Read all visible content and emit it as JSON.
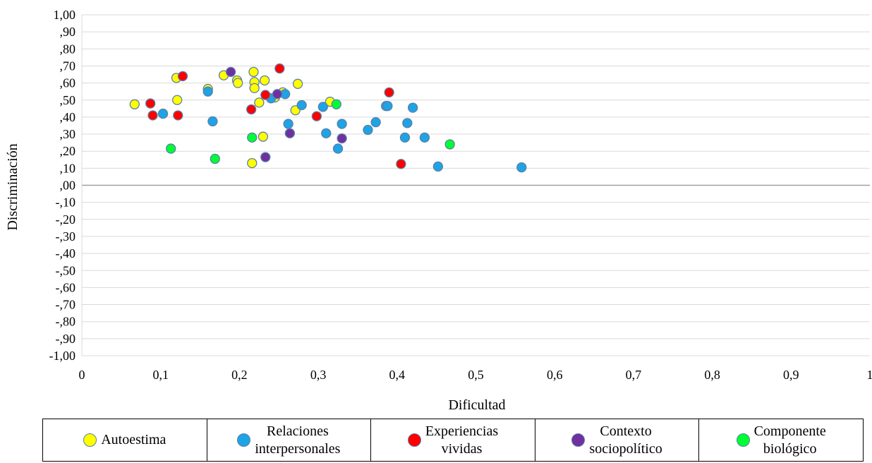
{
  "chart_data": {
    "type": "scatter",
    "title": "",
    "xlabel": "Dificultad",
    "ylabel": "Discriminación",
    "xlim": [
      0,
      1
    ],
    "ylim": [
      -1,
      1
    ],
    "x_ticks": [
      0,
      0.1,
      0.2,
      0.3,
      0.4,
      0.5,
      0.6,
      0.7,
      0.8,
      0.9,
      1
    ],
    "x_tick_labels": [
      "0",
      "0,1",
      "0,2",
      "0,3",
      "0,4",
      "0,5",
      "0,6",
      "0,7",
      "0,8",
      "0,9",
      "1"
    ],
    "y_ticks": [
      1,
      0.9,
      0.8,
      0.7,
      0.6,
      0.5,
      0.4,
      0.3,
      0.2,
      0.1,
      0,
      -0.1,
      -0.2,
      -0.3,
      -0.4,
      -0.5,
      -0.6,
      -0.7,
      -0.8,
      -0.9,
      -1
    ],
    "y_tick_labels": [
      "1,00",
      ",90",
      ",80",
      ",70",
      ",60",
      ",50",
      ",40",
      ",30",
      ",20",
      ",10",
      ",00",
      "-,10",
      "-,20",
      "-,30",
      "-,40",
      "-,50",
      "-,60",
      "-,70",
      "-,80",
      "-,90",
      "-1,00"
    ],
    "grid": true,
    "legend_position": "bottom",
    "series": [
      {
        "name": "Autoestima",
        "color": "#ffff00",
        "points": [
          [
            0.067,
            0.475
          ],
          [
            0.12,
            0.63
          ],
          [
            0.121,
            0.5
          ],
          [
            0.16,
            0.565
          ],
          [
            0.18,
            0.645
          ],
          [
            0.197,
            0.615
          ],
          [
            0.198,
            0.6
          ],
          [
            0.218,
            0.665
          ],
          [
            0.219,
            0.605
          ],
          [
            0.219,
            0.57
          ],
          [
            0.216,
            0.13
          ],
          [
            0.225,
            0.485
          ],
          [
            0.23,
            0.285
          ],
          [
            0.232,
            0.615
          ],
          [
            0.245,
            0.515
          ],
          [
            0.255,
            0.545
          ],
          [
            0.271,
            0.44
          ],
          [
            0.274,
            0.595
          ],
          [
            0.315,
            0.49
          ]
        ]
      },
      {
        "name": "Relaciones\ninterpersonales",
        "color": "#1ea3e6",
        "points": [
          [
            0.103,
            0.42
          ],
          [
            0.16,
            0.55
          ],
          [
            0.166,
            0.375
          ],
          [
            0.24,
            0.51
          ],
          [
            0.258,
            0.535
          ],
          [
            0.262,
            0.36
          ],
          [
            0.279,
            0.47
          ],
          [
            0.306,
            0.46
          ],
          [
            0.31,
            0.305
          ],
          [
            0.325,
            0.215
          ],
          [
            0.33,
            0.36
          ],
          [
            0.363,
            0.325
          ],
          [
            0.373,
            0.37
          ],
          [
            0.386,
            0.465
          ],
          [
            0.388,
            0.465
          ],
          [
            0.41,
            0.28
          ],
          [
            0.413,
            0.365
          ],
          [
            0.42,
            0.455
          ],
          [
            0.435,
            0.28
          ],
          [
            0.452,
            0.11
          ],
          [
            0.558,
            0.105
          ]
        ]
      },
      {
        "name": "Experiencias\nvividas",
        "color": "#ff0000",
        "points": [
          [
            0.087,
            0.48
          ],
          [
            0.09,
            0.41
          ],
          [
            0.122,
            0.41
          ],
          [
            0.128,
            0.64
          ],
          [
            0.215,
            0.445
          ],
          [
            0.233,
            0.53
          ],
          [
            0.251,
            0.685
          ],
          [
            0.298,
            0.405
          ],
          [
            0.39,
            0.545
          ],
          [
            0.405,
            0.125
          ]
        ]
      },
      {
        "name": "Contexto\nsociopolítico",
        "color": "#7030a0",
        "points": [
          [
            0.189,
            0.665
          ],
          [
            0.233,
            0.165
          ],
          [
            0.248,
            0.535
          ],
          [
            0.264,
            0.305
          ],
          [
            0.33,
            0.275
          ]
        ]
      },
      {
        "name": "Componente\nbiológico",
        "color": "#00ff33",
        "points": [
          [
            0.113,
            0.215
          ],
          [
            0.169,
            0.155
          ],
          [
            0.216,
            0.28
          ],
          [
            0.323,
            0.475
          ],
          [
            0.467,
            0.24
          ]
        ]
      }
    ]
  }
}
